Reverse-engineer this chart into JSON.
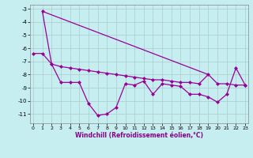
{
  "xlabel": "Windchill (Refroidissement éolien,°C)",
  "background_color": "#c6eef0",
  "grid_color": "#aacccc",
  "line_color": "#990099",
  "line_top": {
    "x": [
      1,
      19
    ],
    "y": [
      -3.2,
      -8.0
    ]
  },
  "line_flat": {
    "x": [
      0,
      1,
      2,
      3,
      4,
      5,
      6,
      7,
      8,
      9,
      10,
      11,
      12,
      13,
      14,
      15,
      16,
      17,
      18,
      19,
      20,
      21,
      22,
      23
    ],
    "y": [
      -6.4,
      -6.4,
      -7.2,
      -7.4,
      -7.5,
      -7.6,
      -7.7,
      -7.8,
      -7.9,
      -8.0,
      -8.1,
      -8.2,
      -8.3,
      -8.4,
      -8.4,
      -8.5,
      -8.6,
      -8.6,
      -8.7,
      -8.0,
      -8.7,
      -8.7,
      -8.8,
      -8.8
    ]
  },
  "line_zigzag": {
    "x": [
      1,
      2,
      3,
      4,
      5,
      6,
      7,
      8,
      9,
      10,
      11,
      12,
      13,
      14,
      15,
      16,
      17,
      18,
      19,
      20,
      21,
      22,
      23
    ],
    "y": [
      -3.2,
      -7.2,
      -8.6,
      -8.6,
      -8.6,
      -10.2,
      -11.1,
      -11.0,
      -10.5,
      -8.7,
      -8.8,
      -8.5,
      -9.5,
      -8.7,
      -8.8,
      -8.9,
      -9.5,
      -9.5,
      -9.7,
      -10.1,
      -9.5,
      -7.5,
      -8.8
    ]
  },
  "ylim": [
    -11.7,
    -2.7
  ],
  "xlim": [
    -0.3,
    23.3
  ],
  "yticks": [
    -11,
    -10,
    -9,
    -8,
    -7,
    -6,
    -5,
    -4,
    -3
  ],
  "xticks": [
    0,
    1,
    2,
    3,
    4,
    5,
    6,
    7,
    8,
    9,
    10,
    11,
    12,
    13,
    14,
    15,
    16,
    17,
    18,
    19,
    20,
    21,
    22,
    23
  ]
}
